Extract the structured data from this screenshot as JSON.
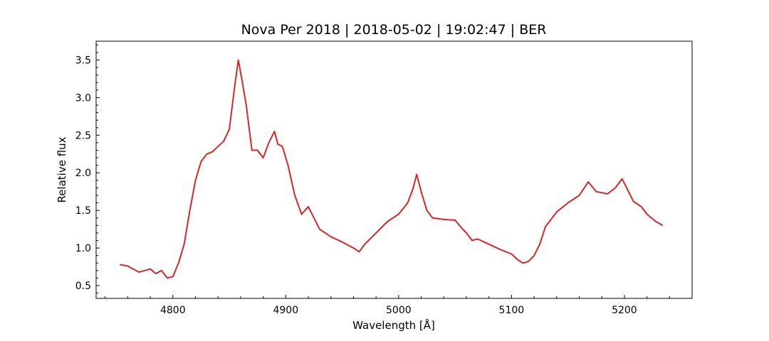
{
  "chart_data": {
    "type": "line",
    "title": "Nova Per 2018 | 2018-05-02 | 19:02:47 | BER",
    "xlabel": "Wavelength [Å]",
    "ylabel": "Relative flux",
    "xlim": [
      4732,
      5260
    ],
    "ylim": [
      0.33,
      3.75
    ],
    "x_ticks": [
      4800,
      4900,
      5000,
      5100,
      5200
    ],
    "x_tick_labels": [
      "4800",
      "4900",
      "5000",
      "5100",
      "5200"
    ],
    "y_ticks": [
      0.5,
      1.0,
      1.5,
      2.0,
      2.5,
      3.0,
      3.5
    ],
    "y_tick_labels": [
      "0.5",
      "1.0",
      "1.5",
      "2.0",
      "2.5",
      "3.0",
      "3.5"
    ],
    "grid": false,
    "series": [
      {
        "color": "#d62728",
        "x": [
          4753,
          4760,
          4765,
          4770,
          4775,
          4780,
          4785,
          4790,
          4795,
          4800,
          4805,
          4810,
          4815,
          4820,
          4825,
          4830,
          4835,
          4840,
          4845,
          4850,
          4855,
          4858,
          4861,
          4865,
          4870,
          4875,
          4880,
          4885,
          4890,
          4893,
          4897,
          4902,
          4908,
          4914,
          4920,
          4925,
          4930,
          4940,
          4950,
          4960,
          4965,
          4970,
          4980,
          4990,
          5000,
          5008,
          5013,
          5016,
          5020,
          5025,
          5030,
          5040,
          5050,
          5055,
          5060,
          5065,
          5070,
          5080,
          5090,
          5100,
          5105,
          5110,
          5115,
          5120,
          5125,
          5130,
          5140,
          5150,
          5160,
          5168,
          5175,
          5185,
          5192,
          5198,
          5202,
          5208,
          5215,
          5220,
          5228,
          5234
        ],
        "y": [
          0.78,
          0.76,
          0.72,
          0.68,
          0.7,
          0.72,
          0.66,
          0.7,
          0.6,
          0.62,
          0.8,
          1.05,
          1.5,
          1.9,
          2.15,
          2.25,
          2.28,
          2.35,
          2.42,
          2.58,
          3.18,
          3.5,
          3.25,
          2.9,
          2.3,
          2.3,
          2.2,
          2.4,
          2.55,
          2.38,
          2.35,
          2.1,
          1.7,
          1.45,
          1.55,
          1.4,
          1.25,
          1.15,
          1.08,
          1.0,
          0.95,
          1.05,
          1.2,
          1.35,
          1.45,
          1.6,
          1.8,
          1.98,
          1.75,
          1.5,
          1.4,
          1.38,
          1.37,
          1.28,
          1.2,
          1.1,
          1.12,
          1.05,
          0.98,
          0.92,
          0.85,
          0.8,
          0.82,
          0.9,
          1.05,
          1.28,
          1.48,
          1.6,
          1.7,
          1.88,
          1.75,
          1.72,
          1.8,
          1.92,
          1.8,
          1.62,
          1.55,
          1.45,
          1.35,
          1.3
        ]
      }
    ]
  }
}
